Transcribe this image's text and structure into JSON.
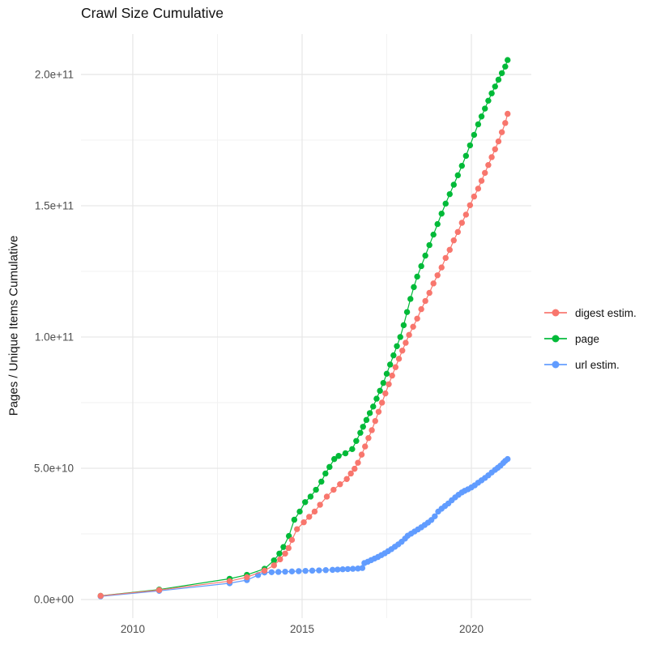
{
  "chart_data": {
    "type": "scatter",
    "title": "Crawl Size Cumulative",
    "xlabel": "",
    "ylabel": "Pages / Unique Items Cumulative",
    "value_unit": "billions (1e9)",
    "grid": "on",
    "legend_position": "right",
    "x_axis": {
      "lim": [
        2008.47,
        2021.77
      ],
      "ticks": [
        {
          "v": 2010,
          "label": "2010"
        },
        {
          "v": 2015,
          "label": "2015"
        },
        {
          "v": 2020,
          "label": "2020"
        }
      ],
      "minor": [
        2012.5,
        2017.5
      ]
    },
    "y_axis": {
      "lim": [
        -7.1,
        215.4
      ],
      "ticks": [
        {
          "v": 0,
          "label": "0.0e+00"
        },
        {
          "v": 50,
          "label": "5.0e+10"
        },
        {
          "v": 100,
          "label": "1.0e+11"
        },
        {
          "v": 150,
          "label": "1.5e+11"
        },
        {
          "v": 200,
          "label": "2.0e+11"
        }
      ],
      "minor": [
        25,
        75,
        125,
        175
      ]
    },
    "legend": [
      {
        "series": "digest",
        "label": "digest estim.",
        "color": "#F8766D"
      },
      {
        "series": "page",
        "label": "page",
        "color": "#00BA38"
      },
      {
        "series": "url",
        "label": "url estim.",
        "color": "#619CFF"
      }
    ],
    "series": [
      {
        "id": "page",
        "label": "page",
        "color": "#00BA38",
        "points": [
          [
            2009.05,
            1.4
          ],
          [
            2010.78,
            3.8
          ],
          [
            2012.86,
            7.9
          ],
          [
            2013.37,
            9.4
          ],
          [
            2013.89,
            11.7
          ],
          [
            2014.17,
            14.9
          ],
          [
            2014.33,
            17.5
          ],
          [
            2014.45,
            20.0
          ],
          [
            2014.61,
            24.2
          ],
          [
            2014.77,
            30.4
          ],
          [
            2014.93,
            33.5
          ],
          [
            2015.09,
            37.1
          ],
          [
            2015.25,
            39.2
          ],
          [
            2015.41,
            41.8
          ],
          [
            2015.57,
            44.9
          ],
          [
            2015.69,
            48.0
          ],
          [
            2015.81,
            50.5
          ],
          [
            2015.95,
            53.5
          ],
          [
            2016.08,
            54.7
          ],
          [
            2016.28,
            55.7
          ],
          [
            2016.48,
            57.3
          ],
          [
            2016.6,
            60.4
          ],
          [
            2016.72,
            63.5
          ],
          [
            2016.8,
            65.8
          ],
          [
            2016.9,
            68.4
          ],
          [
            2017.0,
            71.0
          ],
          [
            2017.1,
            73.5
          ],
          [
            2017.2,
            76.5
          ],
          [
            2017.3,
            79.5
          ],
          [
            2017.4,
            82.5
          ],
          [
            2017.5,
            86.0
          ],
          [
            2017.6,
            89.5
          ],
          [
            2017.7,
            93.0
          ],
          [
            2017.8,
            96.5
          ],
          [
            2017.9,
            100.0
          ],
          [
            2018.0,
            104.5
          ],
          [
            2018.1,
            109.5
          ],
          [
            2018.2,
            114.5
          ],
          [
            2018.3,
            119.0
          ],
          [
            2018.4,
            123.0
          ],
          [
            2018.52,
            127.0
          ],
          [
            2018.64,
            131.0
          ],
          [
            2018.76,
            135.0
          ],
          [
            2018.88,
            139.0
          ],
          [
            2019.0,
            143.0
          ],
          [
            2019.12,
            147.0
          ],
          [
            2019.24,
            150.8
          ],
          [
            2019.36,
            154.4
          ],
          [
            2019.48,
            158.0
          ],
          [
            2019.6,
            161.6
          ],
          [
            2019.72,
            165.2
          ],
          [
            2019.84,
            169.0
          ],
          [
            2019.96,
            173.0
          ],
          [
            2020.08,
            177.0
          ],
          [
            2020.2,
            181.0
          ],
          [
            2020.3,
            184.0
          ],
          [
            2020.4,
            187.0
          ],
          [
            2020.5,
            190.0
          ],
          [
            2020.6,
            192.8
          ],
          [
            2020.7,
            195.4
          ],
          [
            2020.8,
            198.0
          ],
          [
            2020.9,
            200.5
          ],
          [
            2021.0,
            203.0
          ],
          [
            2021.07,
            205.5
          ]
        ]
      },
      {
        "id": "url",
        "label": "url estim.",
        "color": "#619CFF",
        "points": [
          [
            2009.05,
            1.2
          ],
          [
            2010.78,
            3.3
          ],
          [
            2012.86,
            6.2
          ],
          [
            2013.37,
            7.4
          ],
          [
            2013.7,
            9.3
          ],
          [
            2013.89,
            10.3
          ],
          [
            2014.1,
            10.4
          ],
          [
            2014.3,
            10.5
          ],
          [
            2014.5,
            10.6
          ],
          [
            2014.7,
            10.7
          ],
          [
            2014.9,
            10.8
          ],
          [
            2015.1,
            10.9
          ],
          [
            2015.3,
            11.0
          ],
          [
            2015.5,
            11.1
          ],
          [
            2015.7,
            11.2
          ],
          [
            2015.9,
            11.3
          ],
          [
            2016.05,
            11.4
          ],
          [
            2016.2,
            11.5
          ],
          [
            2016.35,
            11.6
          ],
          [
            2016.5,
            11.7
          ],
          [
            2016.65,
            11.8
          ],
          [
            2016.78,
            12.0
          ],
          [
            2016.84,
            13.9
          ],
          [
            2016.94,
            14.4
          ],
          [
            2017.04,
            15.0
          ],
          [
            2017.14,
            15.6
          ],
          [
            2017.24,
            16.2
          ],
          [
            2017.34,
            16.9
          ],
          [
            2017.44,
            17.6
          ],
          [
            2017.54,
            18.4
          ],
          [
            2017.64,
            19.2
          ],
          [
            2017.74,
            20.1
          ],
          [
            2017.84,
            21.0
          ],
          [
            2017.94,
            22.0
          ],
          [
            2018.04,
            23.2
          ],
          [
            2018.12,
            24.3
          ],
          [
            2018.22,
            25.1
          ],
          [
            2018.32,
            25.9
          ],
          [
            2018.42,
            26.7
          ],
          [
            2018.52,
            27.5
          ],
          [
            2018.62,
            28.4
          ],
          [
            2018.72,
            29.3
          ],
          [
            2018.82,
            30.3
          ],
          [
            2018.92,
            31.7
          ],
          [
            2019.02,
            33.5
          ],
          [
            2019.12,
            34.6
          ],
          [
            2019.22,
            35.6
          ],
          [
            2019.32,
            36.6
          ],
          [
            2019.42,
            37.8
          ],
          [
            2019.52,
            38.9
          ],
          [
            2019.62,
            39.9
          ],
          [
            2019.72,
            40.8
          ],
          [
            2019.8,
            41.4
          ],
          [
            2019.9,
            42.0
          ],
          [
            2020.0,
            42.7
          ],
          [
            2020.1,
            43.5
          ],
          [
            2020.2,
            44.5
          ],
          [
            2020.3,
            45.4
          ],
          [
            2020.4,
            46.3
          ],
          [
            2020.5,
            47.3
          ],
          [
            2020.6,
            48.4
          ],
          [
            2020.7,
            49.4
          ],
          [
            2020.78,
            50.2
          ],
          [
            2020.86,
            51.0
          ],
          [
            2020.94,
            52.0
          ],
          [
            2021.0,
            52.8
          ],
          [
            2021.07,
            53.5
          ]
        ]
      },
      {
        "id": "digest",
        "label": "digest estim.",
        "color": "#F8766D",
        "points": [
          [
            2009.05,
            1.4
          ],
          [
            2010.78,
            3.6
          ],
          [
            2012.86,
            7.0
          ],
          [
            2013.37,
            8.5
          ],
          [
            2013.89,
            11.0
          ],
          [
            2014.17,
            13.0
          ],
          [
            2014.35,
            15.3
          ],
          [
            2014.5,
            17.5
          ],
          [
            2014.6,
            19.6
          ],
          [
            2014.7,
            22.7
          ],
          [
            2014.85,
            26.8
          ],
          [
            2015.05,
            29.4
          ],
          [
            2015.21,
            31.5
          ],
          [
            2015.37,
            33.5
          ],
          [
            2015.53,
            36.1
          ],
          [
            2015.73,
            39.2
          ],
          [
            2015.93,
            41.8
          ],
          [
            2016.12,
            43.9
          ],
          [
            2016.32,
            45.9
          ],
          [
            2016.44,
            48.0
          ],
          [
            2016.55,
            49.8
          ],
          [
            2016.65,
            52.1
          ],
          [
            2016.76,
            55.2
          ],
          [
            2016.86,
            58.3
          ],
          [
            2016.96,
            61.5
          ],
          [
            2017.06,
            64.5
          ],
          [
            2017.16,
            68.0
          ],
          [
            2017.26,
            71.5
          ],
          [
            2017.36,
            75.0
          ],
          [
            2017.46,
            78.5
          ],
          [
            2017.56,
            82.0
          ],
          [
            2017.66,
            85.3
          ],
          [
            2017.76,
            88.5
          ],
          [
            2017.86,
            91.7
          ],
          [
            2017.96,
            94.8
          ],
          [
            2018.06,
            97.8
          ],
          [
            2018.16,
            100.8
          ],
          [
            2018.28,
            103.9
          ],
          [
            2018.4,
            107.0
          ],
          [
            2018.52,
            110.6
          ],
          [
            2018.64,
            113.7
          ],
          [
            2018.76,
            116.8
          ],
          [
            2018.88,
            120.4
          ],
          [
            2019.0,
            123.5
          ],
          [
            2019.12,
            126.5
          ],
          [
            2019.24,
            130.1
          ],
          [
            2019.36,
            133.2
          ],
          [
            2019.48,
            136.8
          ],
          [
            2019.6,
            140.0
          ],
          [
            2019.72,
            143.5
          ],
          [
            2019.84,
            146.6
          ],
          [
            2019.96,
            150.2
          ],
          [
            2020.08,
            153.5
          ],
          [
            2020.2,
            156.5
          ],
          [
            2020.3,
            159.5
          ],
          [
            2020.4,
            162.5
          ],
          [
            2020.5,
            165.5
          ],
          [
            2020.6,
            168.5
          ],
          [
            2020.7,
            171.5
          ],
          [
            2020.8,
            174.5
          ],
          [
            2020.9,
            178.0
          ],
          [
            2021.0,
            181.5
          ],
          [
            2021.07,
            185.0
          ]
        ]
      }
    ]
  }
}
